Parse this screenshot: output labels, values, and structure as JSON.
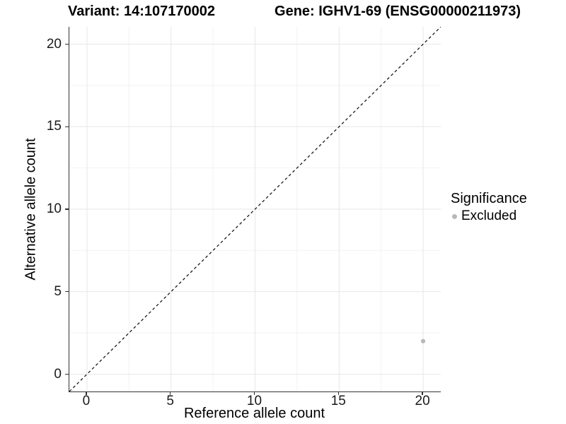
{
  "chart_data": {
    "type": "scatter",
    "title_left": "Variant: 14:107170002",
    "title_right": "Gene: IGHV1-69 (ENSG00000211973)",
    "xlabel": "Reference allele count",
    "ylabel": "Alternative allele count",
    "xlim": [
      -1.05,
      21.05
    ],
    "ylim": [
      -1.05,
      21.05
    ],
    "x_major_ticks": [
      0,
      5,
      10,
      15,
      20
    ],
    "y_major_ticks": [
      0,
      5,
      10,
      15,
      20
    ],
    "x_minor_ticks": [
      2.5,
      7.5,
      12.5,
      17.5
    ],
    "y_minor_ticks": [
      2.5,
      7.5,
      12.5,
      17.5
    ],
    "grid": "on",
    "points": [
      {
        "x": 20,
        "y": 2,
        "series": "Excluded"
      }
    ],
    "identity_line": {
      "style": "dashed",
      "from": [
        -1.05,
        -1.05
      ],
      "to": [
        21.05,
        21.05
      ]
    },
    "legend": {
      "title": "Significance",
      "position": "right",
      "items": [
        {
          "label": "Excluded",
          "color": "#b8b8b8"
        }
      ]
    },
    "colors": {
      "excluded_point": "#b8b8b8",
      "axis_line": "#333333",
      "grid_major": "#e7e7e7",
      "grid_minor": "#f2f2f2",
      "identity_line": "#1a1a1a",
      "text": "#000000"
    }
  }
}
